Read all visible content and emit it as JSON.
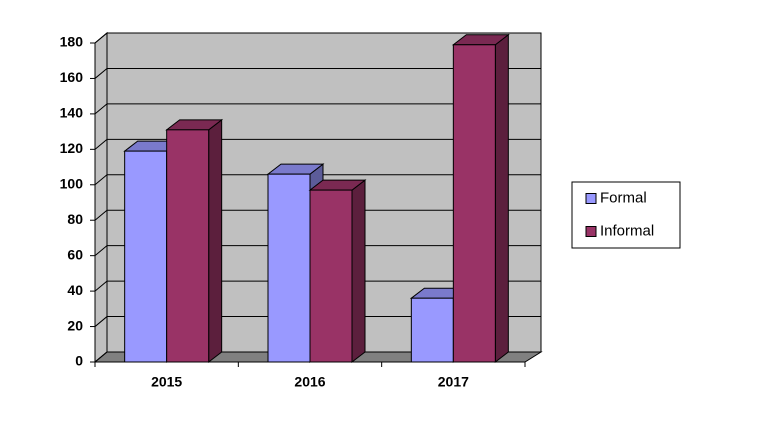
{
  "chart_data": {
    "type": "bar3d",
    "categories": [
      "2015",
      "2016",
      "2017"
    ],
    "series": [
      {
        "name": "Formal",
        "color": "#9999ff",
        "values": [
          119,
          106,
          36
        ]
      },
      {
        "name": "Informal",
        "color": "#993366",
        "values": [
          131,
          97,
          179
        ]
      }
    ],
    "ylim": [
      0,
      180
    ],
    "yticks": [
      0,
      20,
      40,
      60,
      80,
      100,
      120,
      140,
      160,
      180
    ],
    "grid": true,
    "legend": "right"
  }
}
